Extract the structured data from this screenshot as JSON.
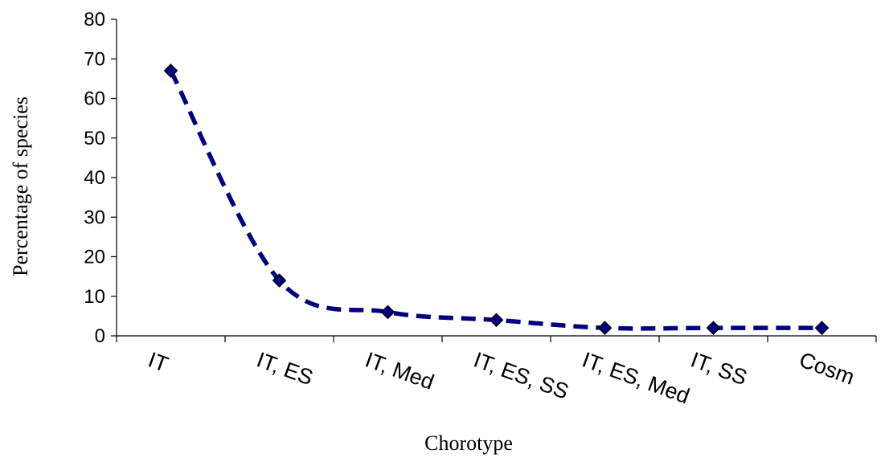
{
  "chart_data": {
    "type": "line",
    "categories": [
      "IT",
      "IT, ES",
      "IT, Med",
      "IT, ES, SS",
      "IT, ES, Med",
      "IT, SS",
      "Cosm"
    ],
    "series": [
      {
        "values": [
          67,
          14,
          6,
          4,
          2,
          2,
          2
        ],
        "color": "#000080",
        "line_style": "dashed",
        "marker": "diamond"
      }
    ],
    "xlabel": "Chorotype",
    "ylabel": "Percentage of species",
    "ylim": [
      0,
      80
    ],
    "yticks": [
      "0",
      "10",
      "20",
      "30",
      "40",
      "50",
      "60",
      "70",
      "80"
    ],
    "grid": false,
    "legend": false
  }
}
